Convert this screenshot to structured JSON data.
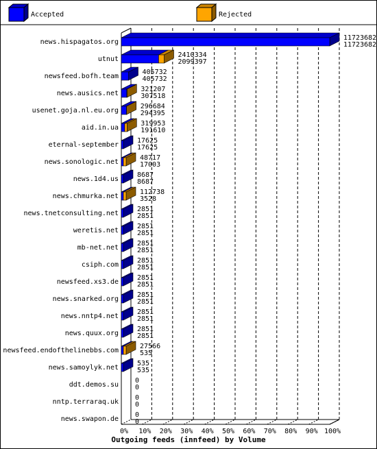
{
  "chart_data": {
    "type": "stacked-bar-3d",
    "title": "Outgoing feeds (innfeed) by Volume",
    "legend": [
      {
        "name": "Accepted",
        "color": "#0000ff"
      },
      {
        "name": "Rejected",
        "color": "#ffa500"
      }
    ],
    "categories": [
      "news.hispagatos.org",
      "utnut",
      "newsfeed.bofh.team",
      "news.ausics.net",
      "usenet.goja.nl.eu.org",
      "aid.in.ua",
      "eternal-september",
      "news.sonologic.net",
      "news.1d4.us",
      "news.chmurka.net",
      "news.tnetconsulting.net",
      "weretis.net",
      "mb-net.net",
      "csiph.com",
      "newsfeed.xs3.de",
      "news.snarked.org",
      "news.nntp4.net",
      "news.quux.org",
      "newsfeed.endofthelinebbs.com",
      "news.samoylyk.net",
      "ddt.demos.su",
      "nntp.terraraq.uk",
      "news.swapon.de"
    ],
    "totals": [
      11723682,
      2410334,
      405732,
      321207,
      296684,
      319953,
      17625,
      48717,
      8687,
      112738,
      2851,
      2851,
      2851,
      2851,
      2851,
      2851,
      2851,
      2851,
      27566,
      535,
      0,
      0,
      0
    ],
    "accepted": [
      11723682,
      2099397,
      405732,
      307518,
      294395,
      191610,
      17625,
      17003,
      8687,
      3528,
      2851,
      2851,
      2851,
      2851,
      2851,
      2851,
      2851,
      2851,
      535,
      535,
      0,
      0,
      0
    ],
    "xlim": [
      0,
      100
    ],
    "xticks": [
      {
        "value": 0,
        "label": "0%"
      },
      {
        "value": 10,
        "label": "10%"
      },
      {
        "value": 20,
        "label": "20%"
      },
      {
        "value": 30,
        "label": "30%"
      },
      {
        "value": 40,
        "label": "40%"
      },
      {
        "value": 50,
        "label": "50%"
      },
      {
        "value": 60,
        "label": "60%"
      },
      {
        "value": 70,
        "label": "70%"
      },
      {
        "value": 80,
        "label": "80%"
      },
      {
        "value": 90,
        "label": "90%"
      },
      {
        "value": 100,
        "label": "100%"
      }
    ],
    "grid": true
  }
}
